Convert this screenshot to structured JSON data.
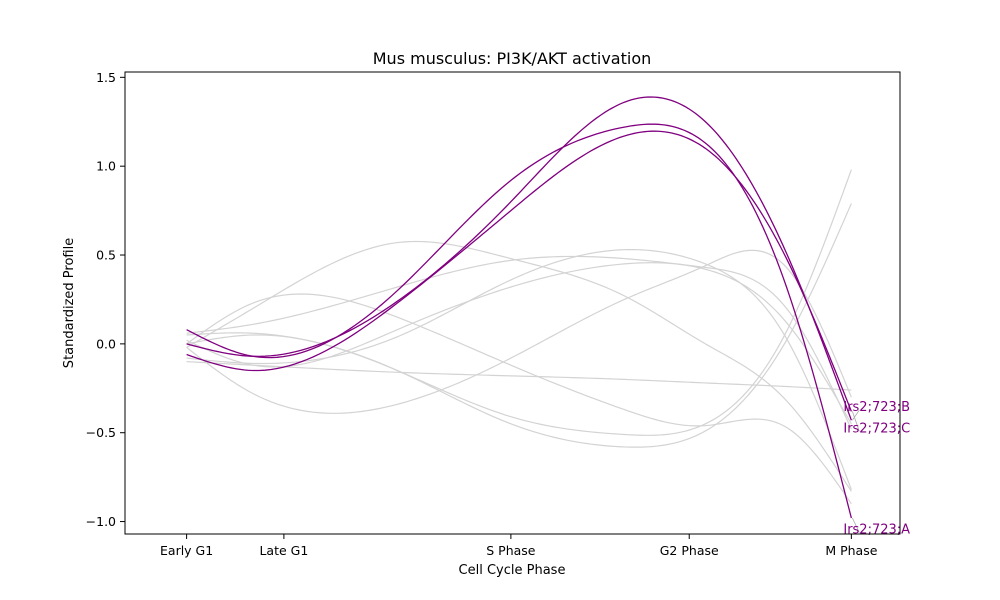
{
  "chart_data": {
    "type": "line",
    "title": "Mus musculus: PI3K/AKT activation",
    "xlabel": "Cell Cycle Phase",
    "ylabel": "Standardized Profile",
    "x_ticks": [
      {
        "label": "Early G1",
        "x": 0.0
      },
      {
        "label": "Late G1",
        "x": 0.6
      },
      {
        "label": "S Phase",
        "x": 2.0
      },
      {
        "label": "G2 Phase",
        "x": 3.1
      },
      {
        "label": "M Phase",
        "x": 4.1
      }
    ],
    "xlim": [
      -0.38,
      4.4
    ],
    "ylim": [
      -1.07,
      1.53
    ],
    "y_ticks": [
      -1.0,
      -0.5,
      0.0,
      0.5,
      1.0,
      1.5
    ],
    "grid": false,
    "colors": {
      "highlight": "#800080",
      "background": "#d3d3d3"
    },
    "x_samples": [
      0.0,
      0.41,
      1.3,
      2.0,
      2.7,
      3.2,
      3.7,
      4.1
    ],
    "highlighted_series": [
      {
        "label": "Irs2;723;A",
        "y": [
          0.08,
          -0.07,
          0.3,
          0.92,
          1.22,
          1.13,
          0.32,
          -0.98
        ]
      },
      {
        "label": "Irs2;723;B",
        "y": [
          0.0,
          -0.07,
          0.24,
          0.8,
          1.36,
          1.25,
          0.51,
          -0.43
        ]
      },
      {
        "label": "Irs2;723;C",
        "y": [
          -0.06,
          -0.15,
          0.23,
          0.75,
          1.17,
          1.1,
          0.48,
          -0.38
        ]
      }
    ],
    "background_series": [
      {
        "y": [
          -0.02,
          0.2,
          0.57,
          0.48,
          0.27,
          0.0,
          -0.32,
          -0.83
        ]
      },
      {
        "y": [
          0.0,
          0.23,
          0.15,
          -0.12,
          -0.37,
          -0.46,
          -0.47,
          -0.9
        ]
      },
      {
        "y": [
          0.06,
          0.11,
          0.32,
          0.47,
          0.48,
          0.43,
          0.2,
          -0.48
        ]
      },
      {
        "y": [
          -0.02,
          -0.28,
          -0.34,
          -0.08,
          0.25,
          0.44,
          0.43,
          -0.3
        ]
      },
      {
        "y": [
          -0.08,
          -0.11,
          0.04,
          0.36,
          0.53,
          0.45,
          0.03,
          -0.82
        ]
      },
      {
        "y": [
          0.05,
          0.06,
          -0.15,
          -0.45,
          -0.58,
          -0.49,
          0.02,
          0.79
        ]
      },
      {
        "y": [
          -0.1,
          -0.12,
          -0.16,
          -0.18,
          -0.2,
          -0.22,
          -0.24,
          -0.26
        ]
      },
      {
        "y": [
          0.02,
          -0.12,
          0.08,
          0.32,
          0.45,
          0.42,
          0.12,
          -0.45
        ]
      },
      {
        "y": [
          0.0,
          0.05,
          -0.15,
          -0.41,
          -0.51,
          -0.45,
          0.07,
          0.98
        ]
      }
    ]
  }
}
